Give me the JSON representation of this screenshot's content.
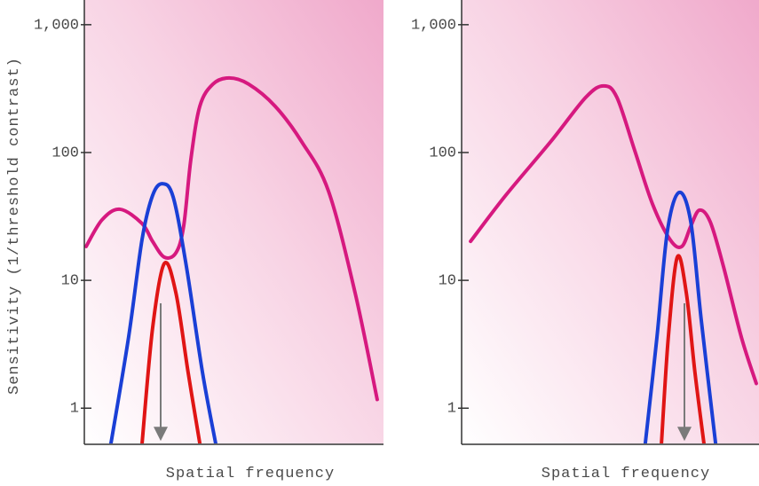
{
  "chart_data": [
    {
      "type": "line",
      "log_y": true,
      "ylabel": "Sensitivity (1/threshold contrast)",
      "xlabel": "Spatial frequency",
      "xlim": [
        0,
        100
      ],
      "ylim": [
        0.53,
        1560
      ],
      "yticks": [
        1,
        10,
        100,
        {
          "value": 1000,
          "label": "1,000"
        }
      ],
      "series": [
        {
          "color": "#d6197f",
          "x": [
            0.6,
            5.9,
            11.9,
            19.3,
            22.8,
            26.7,
            30.6,
            33.2,
            35.6,
            38.6,
            43,
            48.4,
            54.9,
            63.8,
            72.7,
            81.6,
            90.5,
            97.9
          ],
          "values": [
            18.4,
            29.7,
            36,
            27.8,
            20.2,
            15.2,
            16.4,
            26.5,
            88,
            230,
            343,
            383,
            343,
            230,
            121,
            50,
            8,
            1.17
          ]
        },
        {
          "color": "#1a3fd6",
          "x": [
            8.9,
            14.8,
            19.3,
            22.8,
            26.1,
            29.7,
            34.1,
            39.5,
            43.9
          ],
          "values": [
            0.53,
            3.6,
            20.9,
            46,
            57,
            44.8,
            12.9,
            1.9,
            0.53
          ]
        },
        {
          "color": "#e01515",
          "x": [
            19.3,
            22.8,
            26.7,
            30.6,
            34.7,
            38.6
          ],
          "values": [
            0.53,
            4.2,
            13.5,
            8,
            1.9,
            0.53
          ]
        }
      ]
    },
    {
      "type": "line",
      "log_y": true,
      "xlabel": "Spatial frequency",
      "xlim": [
        0,
        100
      ],
      "ylim": [
        0.53,
        1560
      ],
      "yticks": [
        1,
        10,
        100,
        {
          "value": 1000,
          "label": "1,000"
        }
      ],
      "series": [
        {
          "color": "#d6197f",
          "x": [
            3,
            14.8,
            29.7,
            41.5,
            47.5,
            51.9,
            57.9,
            63.8,
            69.7,
            73.6,
            76.6,
            79.5,
            83.1,
            87.5,
            93.5,
            98.5
          ],
          "values": [
            20.2,
            46.4,
            121,
            270,
            332,
            270,
            103,
            39.6,
            20.8,
            18.4,
            26.5,
            35.4,
            28.7,
            12.9,
            3.6,
            1.56
          ]
        },
        {
          "color": "#1a3fd6",
          "x": [
            61.4,
            65.3,
            68.8,
            72.7,
            76.6,
            80.1,
            84.9
          ],
          "values": [
            0.53,
            3.6,
            24.4,
            48.7,
            28.7,
            4.9,
            0.53
          ]
        },
        {
          "color": "#e01515",
          "x": [
            66.8,
            69.1,
            72.1,
            75.1,
            78,
            81
          ],
          "values": [
            0.53,
            3.6,
            15.2,
            8,
            1.9,
            0.53
          ]
        }
      ]
    }
  ]
}
